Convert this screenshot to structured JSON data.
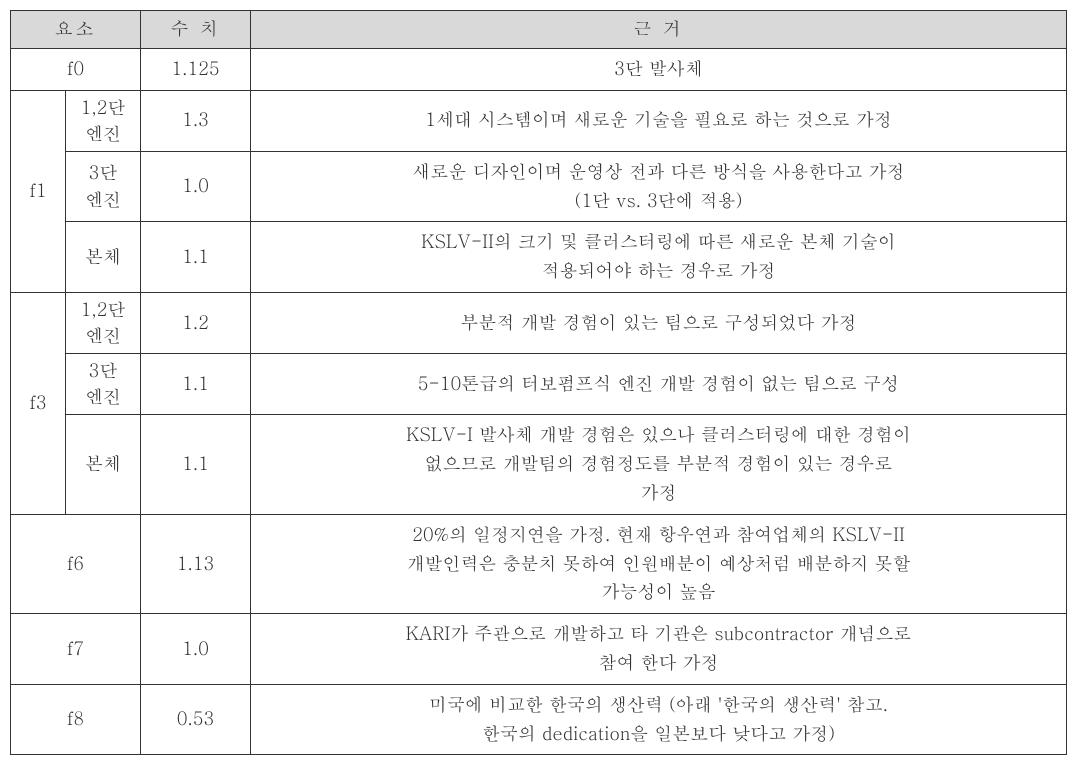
{
  "headers": {
    "element": "요소",
    "value": "수  치",
    "basis": "근  거"
  },
  "rows": {
    "f0": {
      "label": "f0",
      "value": "1.125",
      "basis": "3단 발사체"
    },
    "f1": {
      "label": "f1",
      "sub": {
        "r1": {
          "label1": "1,2단",
          "label2": "엔진",
          "value": "1.3",
          "basis": "1세대 시스템이며 새로운 기술을 필요로 하는 것으로 가정"
        },
        "r2": {
          "label1": "3단",
          "label2": "엔진",
          "value": "1.0",
          "basis1": "새로운 디자인이며 운영상 전과 다른 방식을 사용한다고 가정",
          "basis2": "(1단 vs. 3단에 적용)"
        },
        "r3": {
          "label": "본체",
          "value": "1.1",
          "basis1": "KSLV-II의 크기 및 클러스터링에 따른 새로운 본체 기술이",
          "basis2": "적용되어야 하는 경우로 가정"
        }
      }
    },
    "f3": {
      "label": "f3",
      "sub": {
        "r1": {
          "label1": "1,2단",
          "label2": "엔진",
          "value": "1.2",
          "basis": "부분적 개발 경험이 있는 팀으로 구성되었다 가정"
        },
        "r2": {
          "label1": "3단",
          "label2": "엔진",
          "value": "1.1",
          "basis": "5-10톤급의 터보펌프식 엔진 개발 경험이 없는 팀으로 구성"
        },
        "r3": {
          "label": "본체",
          "value": "1.1",
          "basis1": "KSLV-I 발사체 개발 경험은 있으나 클러스터링에 대한 경험이",
          "basis2": "없으므로 개발팀의 경험정도를 부분적 경험이 있는 경우로",
          "basis3": "가정"
        }
      }
    },
    "f6": {
      "label": "f6",
      "value": "1.13",
      "basis1": "20%의 일정지연을 가정. 현재 항우연과 참여업체의 KSLV-II",
      "basis2": "개발인력은 충분치 못하여 인원배분이 예상처럼 배분하지 못할",
      "basis3": "가능성이 높음"
    },
    "f7": {
      "label": "f7",
      "value": "1.0",
      "basis1": "KARI가 주관으로 개발하고 타 기관은 subcontractor 개념으로",
      "basis2": "참여 한다 가정"
    },
    "f8": {
      "label": "f8",
      "value": "0.53",
      "basis1": "미국에 비교한 한국의 생산력 (아래 '한국의 생산력' 참고.",
      "basis2": "한국의 dedication을 일본보다 낮다고 가정)"
    }
  }
}
